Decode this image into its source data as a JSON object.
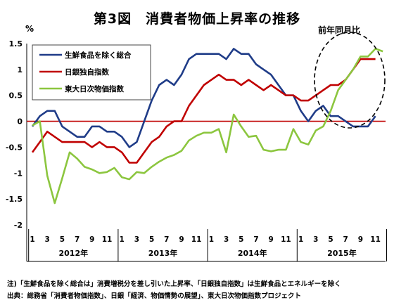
{
  "title": "第3図　消費者物価上昇率の推移",
  "unit_left": "%",
  "unit_right": "前年同月比",
  "notes": {
    "note1": "注)「生鮮食品を除く総合は」消費増税分を差し引いた上昇率、「日銀独自指数」は生鮮食品とエネルギーを除く",
    "note2": "出典：総務省「消費者物価指数」、日銀「経済、物価情勢の展望」、東大日次物価指数プロジェクト"
  },
  "colors": {
    "core_cpi": "#1f3c88",
    "boj_index": "#c00000",
    "todai_index": "#8cc63f",
    "zero_line": "#c00000",
    "grid": "#d0d0d0"
  },
  "chart_data": {
    "type": "line",
    "title": "第3図　消費者物価上昇率の推移",
    "ylabel": "%",
    "ylim": [
      -2,
      1.5
    ],
    "yticks": [
      "1.5",
      "1",
      "0.5",
      "0",
      "-0.5",
      "-1",
      "-1.5",
      "-2"
    ],
    "x_month_ticks": [
      "1",
      "3",
      "5",
      "7",
      "9",
      "11",
      "1",
      "3",
      "5",
      "7",
      "9",
      "11",
      "1",
      "3",
      "5",
      "7",
      "9",
      "11",
      "1",
      "3",
      "5",
      "7",
      "9",
      "11"
    ],
    "year_labels": [
      "2012年",
      "2013年",
      "2014年",
      "2015年"
    ],
    "grid": false,
    "legend_position": "top-left",
    "annotation": "dashed ellipse around 2015 convergence",
    "series": [
      {
        "name": "生鮮食品を除く総合",
        "values": [
          -0.1,
          0.1,
          0.2,
          0.2,
          -0.1,
          -0.2,
          -0.3,
          -0.3,
          -0.1,
          -0.1,
          -0.2,
          -0.2,
          -0.3,
          -0.5,
          -0.4,
          0.0,
          0.4,
          0.7,
          0.8,
          0.7,
          0.9,
          1.2,
          1.3,
          1.3,
          1.3,
          1.3,
          1.2,
          1.4,
          1.3,
          1.3,
          1.1,
          1.0,
          0.9,
          0.7,
          0.5,
          0.5,
          0.2,
          0.0,
          0.2,
          0.3,
          0.1,
          0.1,
          0.0,
          -0.1,
          -0.1,
          -0.1,
          0.1
        ]
      },
      {
        "name": "日銀独自指数",
        "values": [
          -0.6,
          -0.4,
          -0.2,
          -0.3,
          -0.4,
          -0.4,
          -0.4,
          -0.4,
          -0.5,
          -0.4,
          -0.5,
          -0.5,
          -0.6,
          -0.8,
          -0.8,
          -0.6,
          -0.4,
          -0.3,
          -0.1,
          0.0,
          0.0,
          0.3,
          0.5,
          0.7,
          0.8,
          0.9,
          0.8,
          0.8,
          0.7,
          0.8,
          0.7,
          0.6,
          0.7,
          0.6,
          0.5,
          0.5,
          0.4,
          0.4,
          0.5,
          0.6,
          0.7,
          0.7,
          0.8,
          1.0,
          1.2,
          1.2,
          1.2
        ]
      },
      {
        "name": "東大日次物価指数",
        "values": [
          -0.08,
          0.0,
          -1.05,
          -1.58,
          -1.1,
          -0.6,
          -0.72,
          -0.88,
          -0.93,
          -1.0,
          -0.98,
          -0.9,
          -1.08,
          -1.12,
          -0.98,
          -1.0,
          -0.88,
          -0.78,
          -0.7,
          -0.65,
          -0.57,
          -0.37,
          -0.28,
          -0.22,
          -0.22,
          -0.15,
          -0.6,
          0.13,
          -0.1,
          -0.3,
          -0.28,
          -0.55,
          -0.58,
          -0.55,
          -0.55,
          -0.15,
          -0.4,
          -0.45,
          -0.18,
          -0.1,
          0.2,
          0.6,
          0.8,
          1.0,
          1.25,
          1.25,
          1.4,
          1.35
        ]
      }
    ]
  }
}
